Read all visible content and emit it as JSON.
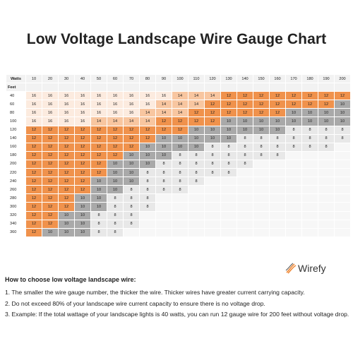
{
  "title": "Low Voltage Landscape Wire Gauge Chart",
  "table": {
    "watts_label": "Watts",
    "feet_label": "Feet",
    "watts": [
      "10",
      "20",
      "30",
      "40",
      "50",
      "60",
      "70",
      "80",
      "90",
      "100",
      "110",
      "120",
      "130",
      "140",
      "150",
      "160",
      "170",
      "180",
      "190",
      "200"
    ],
    "feet": [
      "40",
      "60",
      "80",
      "100",
      "120",
      "140",
      "160",
      "180",
      "200",
      "220",
      "240",
      "260",
      "280",
      "300",
      "320",
      "340",
      "360"
    ],
    "rows": [
      [
        "16",
        "16",
        "16",
        "16",
        "16",
        "16",
        "16",
        "16",
        "16",
        "14",
        "14",
        "14",
        "12",
        "12",
        "12",
        "12",
        "12",
        "12",
        "12",
        "12"
      ],
      [
        "16",
        "16",
        "16",
        "16",
        "16",
        "16",
        "16",
        "16",
        "14",
        "14",
        "14",
        "12",
        "12",
        "12",
        "12",
        "12",
        "12",
        "12",
        "12",
        "10"
      ],
      [
        "16",
        "16",
        "16",
        "16",
        "16",
        "16",
        "16",
        "14",
        "14",
        "14",
        "12",
        "12",
        "12",
        "12",
        "12",
        "12",
        "10",
        "10",
        "10",
        "10"
      ],
      [
        "16",
        "16",
        "16",
        "16",
        "14",
        "14",
        "14",
        "14",
        "12",
        "12",
        "12",
        "12",
        "10",
        "10",
        "10",
        "10",
        "10",
        "10",
        "10",
        "10"
      ],
      [
        "12",
        "12",
        "12",
        "12",
        "12",
        "12",
        "12",
        "12",
        "12",
        "12",
        "10",
        "10",
        "10",
        "10",
        "10",
        "10",
        "8",
        "8",
        "8",
        "8"
      ],
      [
        "12",
        "12",
        "12",
        "12",
        "12",
        "12",
        "12",
        "12",
        "10",
        "10",
        "10",
        "10",
        "10",
        "8",
        "8",
        "8",
        "8",
        "8",
        "8",
        "8"
      ],
      [
        "12",
        "12",
        "12",
        "12",
        "12",
        "12",
        "12",
        "10",
        "10",
        "10",
        "10",
        "8",
        "8",
        "8",
        "8",
        "8",
        "8",
        "8",
        "8",
        ""
      ],
      [
        "12",
        "12",
        "12",
        "12",
        "12",
        "12",
        "10",
        "10",
        "10",
        "8",
        "8",
        "8",
        "8",
        "8",
        "8",
        "8",
        "",
        "",
        "",
        ""
      ],
      [
        "12",
        "12",
        "12",
        "12",
        "12",
        "10",
        "10",
        "10",
        "8",
        "8",
        "8",
        "8",
        "8",
        "8",
        "",
        "",
        "",
        "",
        "",
        ""
      ],
      [
        "12",
        "12",
        "12",
        "12",
        "12",
        "10",
        "10",
        "8",
        "8",
        "8",
        "8",
        "8",
        "8",
        "",
        "",
        "",
        "",
        "",
        "",
        ""
      ],
      [
        "12",
        "12",
        "12",
        "12",
        "10",
        "10",
        "10",
        "8",
        "8",
        "8",
        "8",
        "",
        "",
        "",
        "",
        "",
        "",
        "",
        "",
        ""
      ],
      [
        "12",
        "12",
        "12",
        "12",
        "10",
        "10",
        "8",
        "8",
        "8",
        "8",
        "",
        "",
        "",
        "",
        "",
        "",
        "",
        "",
        "",
        ""
      ],
      [
        "12",
        "12",
        "12",
        "10",
        "10",
        "8",
        "8",
        "8",
        "",
        "",
        "",
        "",
        "",
        "",
        "",
        "",
        "",
        "",
        "",
        ""
      ],
      [
        "12",
        "12",
        "12",
        "10",
        "10",
        "8",
        "8",
        "8",
        "",
        "",
        "",
        "",
        "",
        "",
        "",
        "",
        "",
        "",
        "",
        ""
      ],
      [
        "12",
        "12",
        "10",
        "10",
        "8",
        "8",
        "8",
        "",
        "",
        "",
        "",
        "",
        "",
        "",
        "",
        "",
        "",
        "",
        "",
        ""
      ],
      [
        "12",
        "12",
        "10",
        "10",
        "8",
        "8",
        "8",
        "",
        "",
        "",
        "",
        "",
        "",
        "",
        "",
        "",
        "",
        "",
        "",
        ""
      ],
      [
        "12",
        "10",
        "10",
        "10",
        "8",
        "8",
        "",
        "",
        "",
        "",
        "",
        "",
        "",
        "",
        "",
        "",
        "",
        "",
        "",
        ""
      ]
    ]
  },
  "colors": {
    "16": "#fcebdf",
    "14": "#f8c6a0",
    "12": "#f0924c",
    "10": "#a9a9a9",
    "8": "#e8e8e8",
    "empty": "#f7f7f7",
    "header": "#f2f2f2",
    "logo_orange": "#ef8a3a"
  },
  "logo": {
    "text": "Wirefy",
    "icon": "wire-bundle-icon"
  },
  "howto_title": "How to choose low voltage landscape wire:",
  "notes": [
    "1. The smaller the wire gauge number, the thicker the wire. Thicker wires have greater current carrying capacity.",
    "2. Do not exceed 80% of your landscape wire current capacity to ensure there is no voltage drop.",
    "3. Example: If the total wattage of your landscape lights is 40 watts, you can run 12 gauge wire for 200 feet without voltage drop."
  ]
}
